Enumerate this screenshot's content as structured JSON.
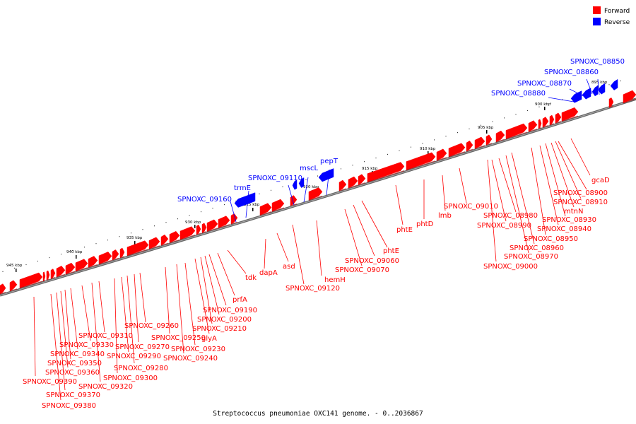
{
  "legend": {
    "items": [
      {
        "label": "Forward",
        "color": "#ff0000"
      },
      {
        "label": "Reverse",
        "color": "#0000ff"
      }
    ]
  },
  "footer": "Streptococcus pneumoniae OXC141 genome. - 0..2036867",
  "ticks": [
    "895 kbp",
    "900 kbp",
    "905 kbp",
    "910 kbp",
    "915 kbp",
    "920 kbp",
    "925 kbp",
    "930 kbp",
    "935 kbp",
    "940 kbp",
    "945 kbp"
  ],
  "forward_color": "#ff0000",
  "reverse_color": "#0000ff",
  "reverse_labels": [
    "SPNOXC_08850",
    "SPNOXC_08860",
    "SPNOXC_08870",
    "SPNOXC_08880",
    "pepT",
    "mscL",
    "SPNOXC_09110",
    "trmE",
    "SPNOXC_09160"
  ],
  "forward_labels": [
    "gcaD",
    "SPNOXC_08900",
    "SPNOXC_08910",
    "mtnN",
    "SPNOXC_08930",
    "SPNOXC_08940",
    "SPNOXC_08950",
    "SPNOXC_08960",
    "SPNOXC_08970",
    "SPNOXC_09000",
    "SPNOXC_08980",
    "SPNOXC_08990",
    "SPNOXC_09010",
    "lmb",
    "phtD",
    "phtE",
    "phtE",
    "SPNOXC_09060",
    "SPNOXC_09070",
    "hemH",
    "SPNOXC_09120",
    "asd",
    "dapA",
    "tdk",
    "prfA",
    "SPNOXC_09190",
    "SPNOXC_09200",
    "SPNOXC_09210",
    "glyA",
    "SPNOXC_09230",
    "SPNOXC_09240",
    "SPNOXC_09250",
    "SPNOXC_09260",
    "SPNOXC_09270",
    "SPNOXC_09280",
    "SPNOXC_09290",
    "SPNOXC_09300",
    "SPNOXC_09310",
    "SPNOXC_09320",
    "SPNOXC_09330",
    "SPNOXC_09340",
    "SPNOXC_09350",
    "SPNOXC_09360",
    "SPNOXC_09370",
    "SPNOXC_09380",
    "SPNOXC_09390"
  ]
}
